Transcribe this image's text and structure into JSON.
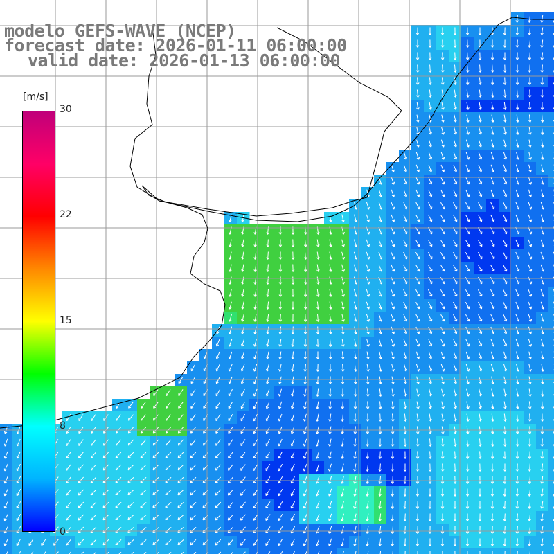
{
  "title": {
    "line1": "modelo GEFS-WAVE (NCEP)",
    "line2": "forecast date: 2026-01-11 06:00:00",
    "line3": "valid date: 2026-01-13 06:00:00"
  },
  "legend": {
    "unit": "[m/s]",
    "ticks": [
      "30",
      "22",
      "15",
      "8",
      "0"
    ],
    "stops": [
      "#0000ff",
      "#00b4ff",
      "#00ffff",
      "#00ff00",
      "#ffff00",
      "#ff8800",
      "#ff0000",
      "#ff0066",
      "#c0007a"
    ]
  },
  "map": {
    "ocean_colors": [
      "#0038f0",
      "#1070f0",
      "#1890f0",
      "#20b0f0",
      "#28d0f0",
      "#30f0c0",
      "#30e070",
      "#40d040"
    ],
    "grid_color": "#9a9a9a",
    "coast_color": "#000000",
    "arrow_color": "#ffffff"
  }
}
